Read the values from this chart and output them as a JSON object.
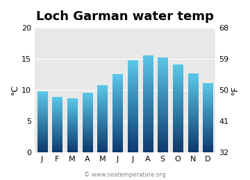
{
  "title": "Loch Garman water temp",
  "months": [
    "J",
    "F",
    "M",
    "A",
    "M",
    "J",
    "J",
    "A",
    "S",
    "O",
    "N",
    "D"
  ],
  "values_c": [
    9.7,
    8.8,
    8.6,
    9.5,
    10.7,
    12.5,
    14.7,
    15.5,
    15.2,
    14.1,
    12.6,
    11.1
  ],
  "ylim_c": [
    0,
    20
  ],
  "yticks_c": [
    0,
    5,
    10,
    15,
    20
  ],
  "yticks_f": [
    32,
    41,
    50,
    59,
    68
  ],
  "ylabel_left": "°C",
  "ylabel_right": "°F",
  "bar_color_top": "#5bc8e8",
  "bar_color_bottom": "#0d3a6e",
  "bg_color": "#e8e8e8",
  "title_fontsize": 13,
  "watermark": "© www.seatemperature.org",
  "watermark_color": "#888888"
}
